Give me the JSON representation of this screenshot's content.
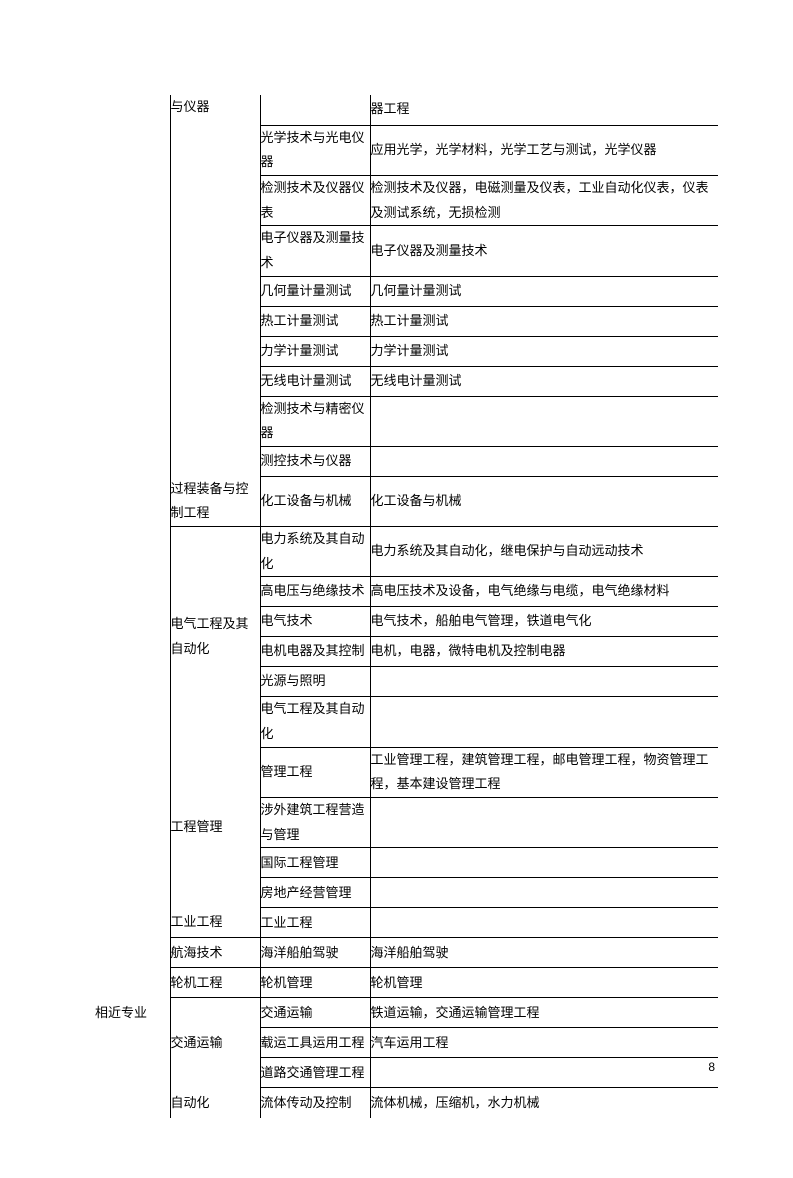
{
  "page_number": "8",
  "col_a_labels": {
    "related": "相近专业"
  },
  "col_b_labels": {
    "instruments": "与仪器",
    "process": "过程装备与控制工程",
    "electrical": "电气工程及其自动化",
    "mgmt": "工程管理",
    "industrial": "工业工程",
    "nav": "航海技术",
    "marine": "轮机工程",
    "transport": "交通运输",
    "auto": "自动化"
  },
  "rows": [
    {
      "c": "",
      "d": "器工程"
    },
    {
      "c": "光学技术与光电仪器",
      "d": "应用光学，光学材料，光学工艺与测试，光学仪器"
    },
    {
      "c": "检测技术及仪器仪表",
      "d": "检测技术及仪器，电磁测量及仪表，工业自动化仪表，仪表及测试系统，无损检测"
    },
    {
      "c": "电子仪器及测量技术",
      "d": "电子仪器及测量技术"
    },
    {
      "c": "几何量计量测试",
      "d": "几何量计量测试"
    },
    {
      "c": "热工计量测试",
      "d": "热工计量测试"
    },
    {
      "c": "力学计量测试",
      "d": "力学计量测试"
    },
    {
      "c": "无线电计量测试",
      "d": "无线电计量测试"
    },
    {
      "c": "检测技术与精密仪器",
      "d": ""
    },
    {
      "c": "测控技术与仪器",
      "d": ""
    },
    {
      "c": "化工设备与机械",
      "d": "化工设备与机械"
    },
    {
      "c": "电力系统及其自动化",
      "d": "电力系统及其自动化，继电保护与自动远动技术"
    },
    {
      "c": "高电压与绝缘技术",
      "d": "高电压技术及设备，电气绝缘与电缆，电气绝缘材料"
    },
    {
      "c": "电气技术",
      "d": "电气技术，船舶电气管理，铁道电气化"
    },
    {
      "c": "电机电器及其控制",
      "d": "电机，电器，微特电机及控制电器"
    },
    {
      "c": "光源与照明",
      "d": ""
    },
    {
      "c": "电气工程及其自动化",
      "d": ""
    },
    {
      "c": "管理工程",
      "d": "工业管理工程，建筑管理工程，邮电管理工程，物资管理工程，基本建设管理工程"
    },
    {
      "c": "涉外建筑工程营造与管理",
      "d": ""
    },
    {
      "c": "国际工程管理",
      "d": ""
    },
    {
      "c": "房地产经营管理",
      "d": ""
    },
    {
      "c": "工业工程",
      "d": ""
    },
    {
      "c": "海洋船舶驾驶",
      "d": "海洋船舶驾驶"
    },
    {
      "c": "轮机管理",
      "d": "轮机管理"
    },
    {
      "c": "交通运输",
      "d": "铁道运输，交通运输管理工程"
    },
    {
      "c": "载运工具运用工程",
      "d": "汽车运用工程"
    },
    {
      "c": "道路交通管理工程",
      "d": ""
    },
    {
      "c": "流体传动及控制",
      "d": "流体机械，压缩机，水力机械"
    }
  ]
}
